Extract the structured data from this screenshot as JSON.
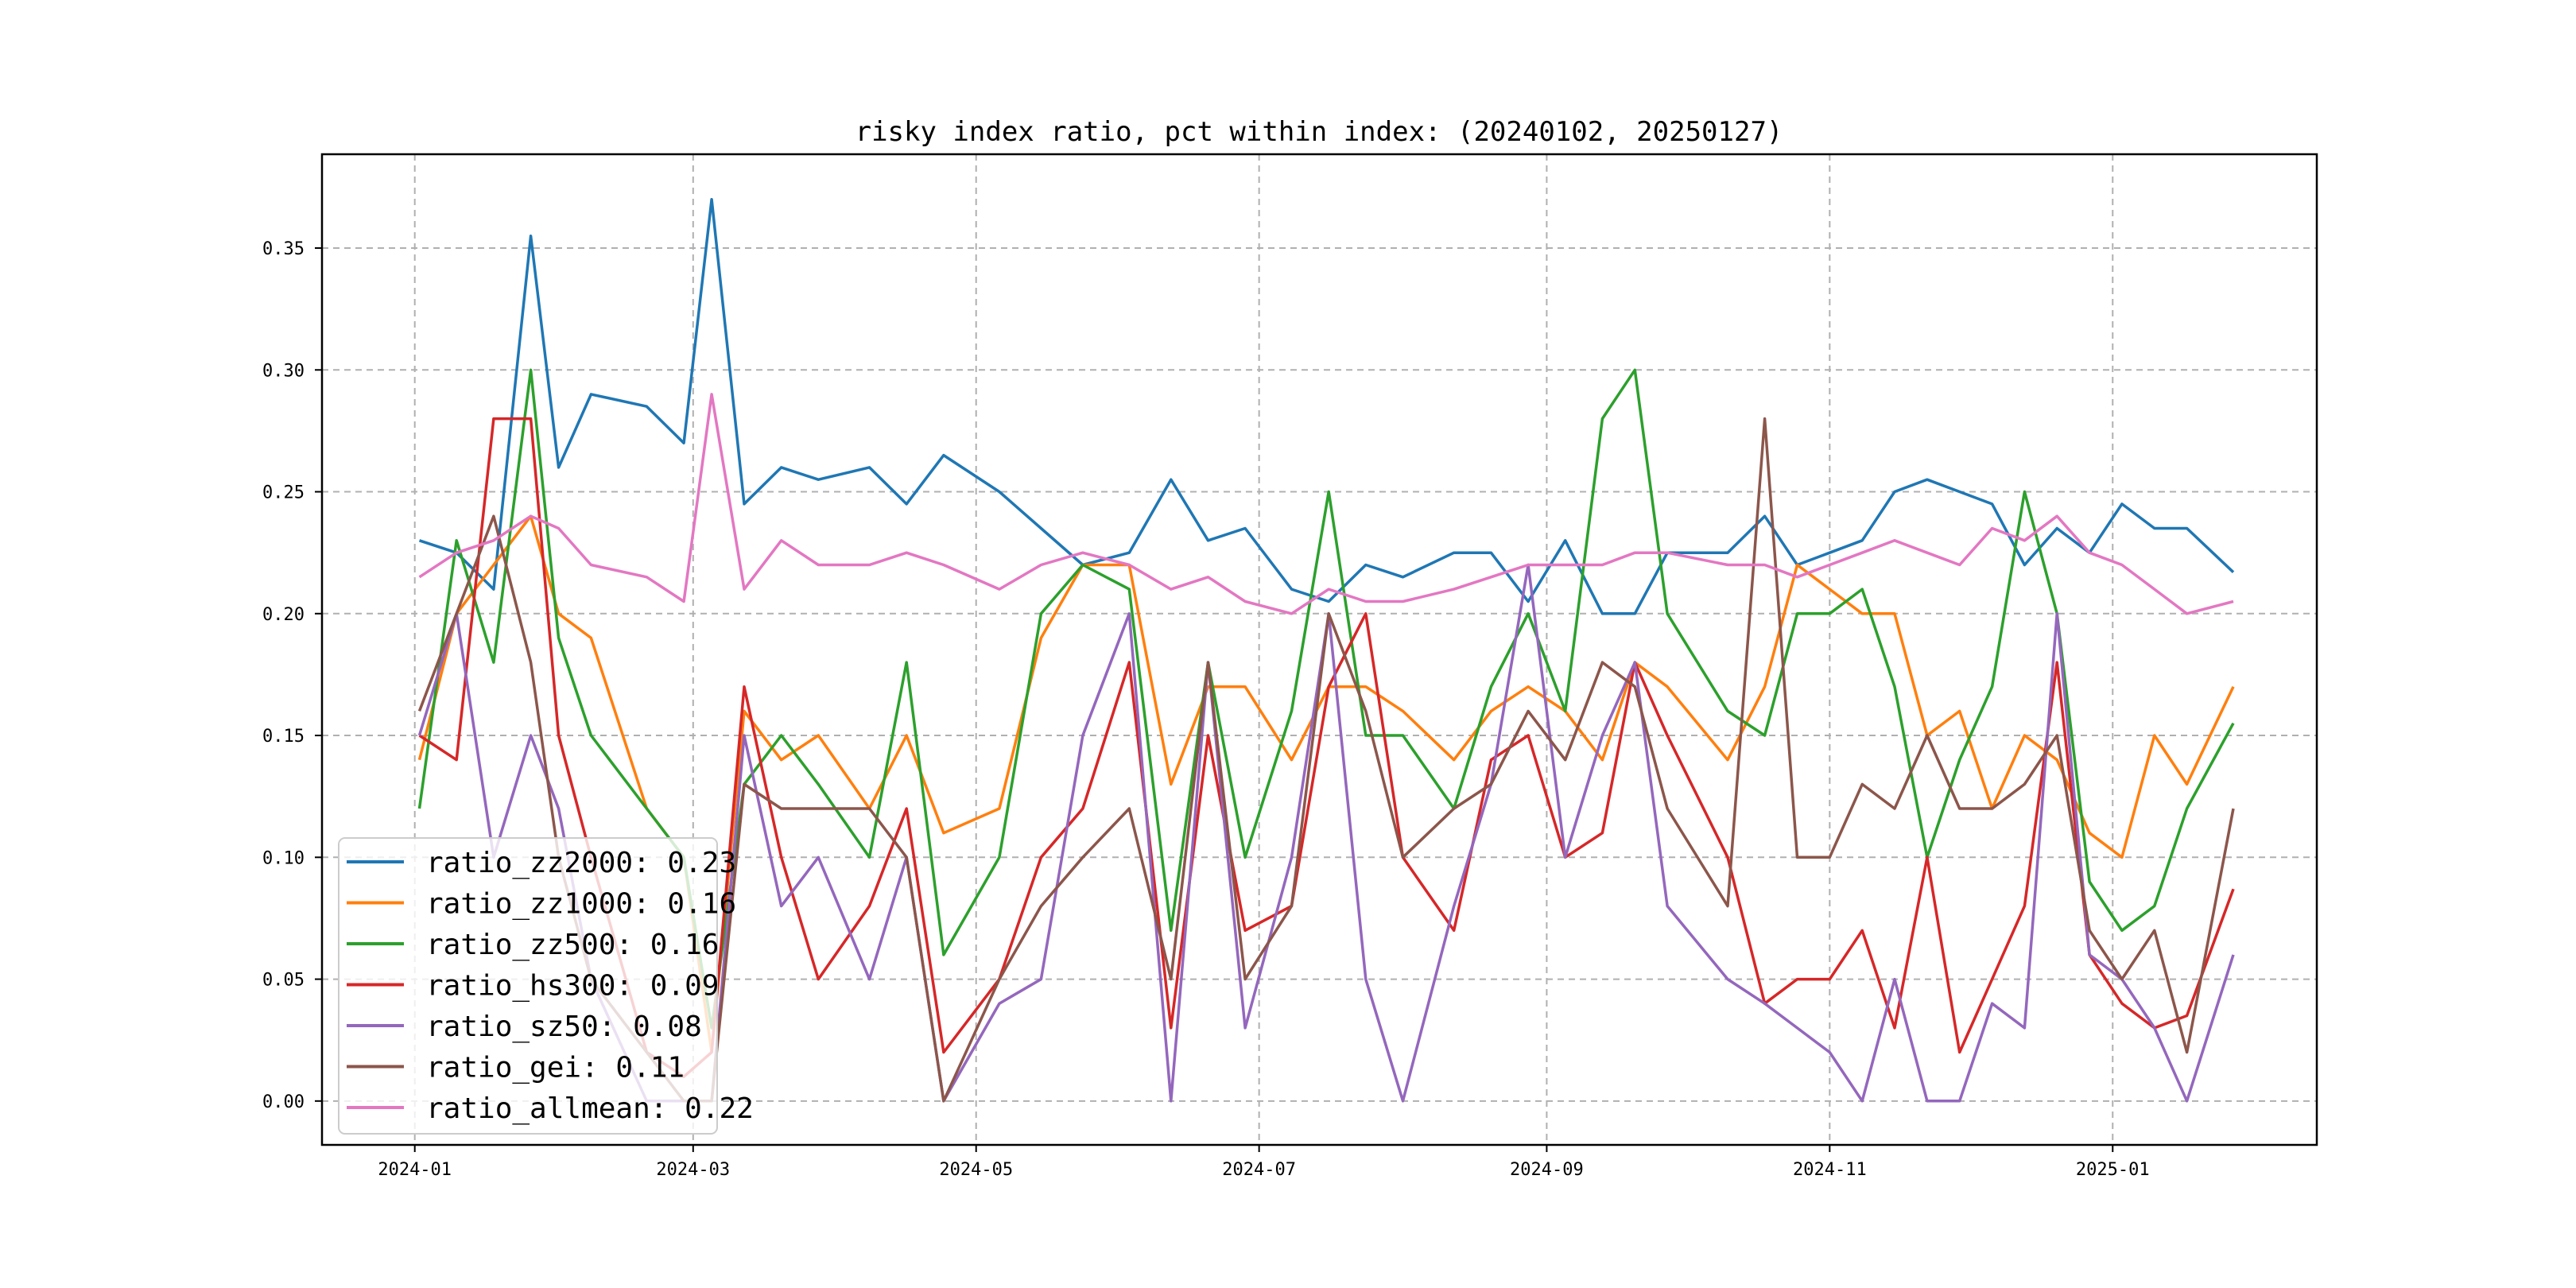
{
  "chart_data": {
    "type": "line",
    "title": "risky index ratio, pct within index: (20240102, 20250127)",
    "xlabel": "",
    "ylabel": "",
    "xlim": [
      "2023-12-12",
      "2025-02-14"
    ],
    "ylim": [
      -0.018,
      0.3885
    ],
    "grid": true,
    "legend_position": "lower-left",
    "x_ticks": [
      "2024-01",
      "2024-03",
      "2024-05",
      "2024-07",
      "2024-09",
      "2024-11",
      "2025-01"
    ],
    "y_ticks": [
      "0.00",
      "0.05",
      "0.10",
      "0.15",
      "0.20",
      "0.25",
      "0.30",
      "0.35"
    ],
    "x": [
      "2024-01-02",
      "2024-01-10",
      "2024-01-18",
      "2024-01-26",
      "2024-02-01",
      "2024-02-08",
      "2024-02-20",
      "2024-02-28",
      "2024-03-05",
      "2024-03-12",
      "2024-03-20",
      "2024-03-28",
      "2024-04-08",
      "2024-04-16",
      "2024-04-24",
      "2024-05-06",
      "2024-05-15",
      "2024-05-24",
      "2024-06-03",
      "2024-06-12",
      "2024-06-20",
      "2024-06-28",
      "2024-07-08",
      "2024-07-16",
      "2024-07-24",
      "2024-08-01",
      "2024-08-12",
      "2024-08-20",
      "2024-08-28",
      "2024-09-05",
      "2024-09-13",
      "2024-09-20",
      "2024-09-27",
      "2024-10-10",
      "2024-10-18",
      "2024-10-25",
      "2024-11-01",
      "2024-11-08",
      "2024-11-15",
      "2024-11-22",
      "2024-11-29",
      "2024-12-06",
      "2024-12-13",
      "2024-12-20",
      "2024-12-27",
      "2025-01-03",
      "2025-01-10",
      "2025-01-17",
      "2025-01-27"
    ],
    "series": [
      {
        "name": "ratio_zz2000",
        "legend": "ratio_zz2000: 0.23",
        "color": "#1f77b4",
        "values": [
          0.23,
          0.225,
          0.21,
          0.355,
          0.26,
          0.29,
          0.285,
          0.27,
          0.37,
          0.245,
          0.26,
          0.255,
          0.26,
          0.245,
          0.265,
          0.25,
          0.235,
          0.22,
          0.225,
          0.255,
          0.23,
          0.235,
          0.21,
          0.205,
          0.22,
          0.215,
          0.225,
          0.225,
          0.205,
          0.23,
          0.2,
          0.2,
          0.225,
          0.225,
          0.24,
          0.22,
          0.225,
          0.23,
          0.25,
          0.255,
          0.25,
          0.245,
          0.22,
          0.235,
          0.225,
          0.245,
          0.235,
          0.235,
          0.217
        ]
      },
      {
        "name": "ratio_zz1000",
        "legend": "ratio_zz1000: 0.16",
        "color": "#ff7f0e",
        "values": [
          0.14,
          0.2,
          0.22,
          0.24,
          0.2,
          0.19,
          0.12,
          0.1,
          0.02,
          0.16,
          0.14,
          0.15,
          0.12,
          0.15,
          0.11,
          0.12,
          0.19,
          0.22,
          0.22,
          0.13,
          0.17,
          0.17,
          0.14,
          0.17,
          0.17,
          0.16,
          0.14,
          0.16,
          0.17,
          0.16,
          0.14,
          0.18,
          0.17,
          0.14,
          0.17,
          0.22,
          0.21,
          0.2,
          0.2,
          0.15,
          0.16,
          0.12,
          0.15,
          0.14,
          0.11,
          0.1,
          0.15,
          0.13,
          0.17
        ]
      },
      {
        "name": "ratio_zz500",
        "legend": "ratio_zz500: 0.16",
        "color": "#2ca02c",
        "values": [
          0.12,
          0.23,
          0.18,
          0.3,
          0.19,
          0.15,
          0.12,
          0.1,
          0.03,
          0.13,
          0.15,
          0.13,
          0.1,
          0.18,
          0.06,
          0.1,
          0.2,
          0.22,
          0.21,
          0.07,
          0.18,
          0.1,
          0.16,
          0.25,
          0.15,
          0.15,
          0.12,
          0.17,
          0.2,
          0.16,
          0.28,
          0.3,
          0.2,
          0.16,
          0.15,
          0.2,
          0.2,
          0.21,
          0.17,
          0.1,
          0.14,
          0.17,
          0.25,
          0.2,
          0.09,
          0.07,
          0.08,
          0.12,
          0.155
        ]
      },
      {
        "name": "ratio_hs300",
        "legend": "ratio_hs300: 0.09",
        "color": "#d62728",
        "values": [
          0.15,
          0.14,
          0.28,
          0.28,
          0.15,
          0.1,
          0.02,
          0.01,
          0.02,
          0.17,
          0.1,
          0.05,
          0.08,
          0.12,
          0.02,
          0.05,
          0.1,
          0.12,
          0.18,
          0.03,
          0.15,
          0.07,
          0.08,
          0.17,
          0.2,
          0.1,
          0.07,
          0.14,
          0.15,
          0.1,
          0.11,
          0.18,
          0.15,
          0.1,
          0.04,
          0.05,
          0.05,
          0.07,
          0.03,
          0.1,
          0.02,
          0.05,
          0.08,
          0.18,
          0.06,
          0.04,
          0.03,
          0.035,
          0.087
        ]
      },
      {
        "name": "ratio_sz50",
        "legend": "ratio_sz50: 0.08",
        "color": "#9467bd",
        "values": [
          0.15,
          0.2,
          0.1,
          0.15,
          0.12,
          0.05,
          0.0,
          0.0,
          0.0,
          0.15,
          0.08,
          0.1,
          0.05,
          0.1,
          0.0,
          0.04,
          0.05,
          0.15,
          0.2,
          0.0,
          0.18,
          0.03,
          0.1,
          0.2,
          0.05,
          0.0,
          0.08,
          0.13,
          0.22,
          0.1,
          0.15,
          0.18,
          0.08,
          0.05,
          0.04,
          0.03,
          0.02,
          0.0,
          0.05,
          0.0,
          0.0,
          0.04,
          0.03,
          0.2,
          0.06,
          0.05,
          0.03,
          0.0,
          0.06
        ]
      },
      {
        "name": "ratio_gei",
        "legend": "ratio_gei: 0.11",
        "color": "#8c564b",
        "values": [
          0.16,
          0.2,
          0.24,
          0.18,
          0.1,
          0.05,
          0.02,
          0.0,
          0.0,
          0.13,
          0.12,
          0.12,
          0.12,
          0.1,
          0.0,
          0.05,
          0.08,
          0.1,
          0.12,
          0.05,
          0.18,
          0.05,
          0.08,
          0.2,
          0.16,
          0.1,
          0.12,
          0.13,
          0.16,
          0.14,
          0.18,
          0.17,
          0.12,
          0.08,
          0.28,
          0.1,
          0.1,
          0.13,
          0.12,
          0.15,
          0.12,
          0.12,
          0.13,
          0.15,
          0.07,
          0.05,
          0.07,
          0.02,
          0.12
        ]
      },
      {
        "name": "ratio_allmean",
        "legend": "ratio_allmean: 0.22",
        "color": "#e377c2",
        "values": [
          0.215,
          0.225,
          0.23,
          0.24,
          0.235,
          0.22,
          0.215,
          0.205,
          0.29,
          0.21,
          0.23,
          0.22,
          0.22,
          0.225,
          0.22,
          0.21,
          0.22,
          0.225,
          0.22,
          0.21,
          0.215,
          0.205,
          0.2,
          0.21,
          0.205,
          0.205,
          0.21,
          0.215,
          0.22,
          0.22,
          0.22,
          0.225,
          0.225,
          0.22,
          0.22,
          0.215,
          0.22,
          0.225,
          0.23,
          0.225,
          0.22,
          0.235,
          0.23,
          0.24,
          0.225,
          0.22,
          0.21,
          0.2,
          0.205
        ]
      }
    ]
  }
}
